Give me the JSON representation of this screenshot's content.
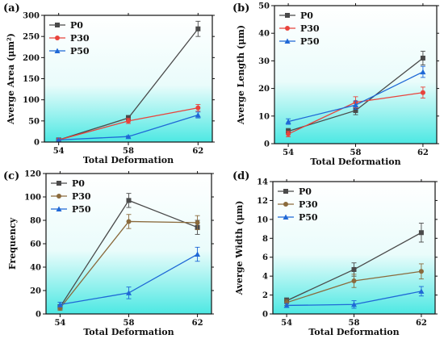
{
  "colors": {
    "P0": "#4a4a4a",
    "P30": "#e8433c",
    "P50": "#1f68d6",
    "P30_dark": "#8a6a3c",
    "plot_bg_top": "#ffffff",
    "plot_bg_bottom": "#4de8e3"
  },
  "chart_data": [
    {
      "type": "line",
      "panel_label": "(a)",
      "xlabel": "Total Deformation",
      "ylabel": "Averge Area (μm²)",
      "x": [
        54,
        58,
        62
      ],
      "ylim": [
        0,
        300
      ],
      "yticks": [
        0,
        50,
        100,
        150,
        200,
        250,
        300
      ],
      "grid": false,
      "legend": "top-left",
      "series": [
        {
          "name": "P0",
          "values": [
            5,
            57,
            268
          ],
          "errors": [
            2,
            6,
            18
          ],
          "marker": "square",
          "color": "#4a4a4a"
        },
        {
          "name": "P30",
          "values": [
            5,
            50,
            81
          ],
          "errors": [
            2,
            6,
            8
          ],
          "marker": "circle",
          "color": "#e8433c"
        },
        {
          "name": "P50",
          "values": [
            5,
            13,
            64
          ],
          "errors": [
            1,
            2,
            7
          ],
          "marker": "triangle",
          "color": "#1f68d6"
        }
      ]
    },
    {
      "type": "line",
      "panel_label": "(b)",
      "xlabel": "Total Deformation",
      "ylabel": "Averge Length (μm)",
      "x": [
        54,
        58,
        62
      ],
      "ylim": [
        0,
        50
      ],
      "yticks": [
        0,
        10,
        20,
        30,
        40,
        50
      ],
      "grid": false,
      "legend": "top-left",
      "series": [
        {
          "name": "P0",
          "values": [
            4.5,
            12,
            31
          ],
          "errors": [
            1,
            1.5,
            2.5
          ],
          "marker": "square",
          "color": "#4a4a4a"
        },
        {
          "name": "P30",
          "values": [
            3.5,
            15,
            18.5
          ],
          "errors": [
            1,
            2,
            2
          ],
          "marker": "circle",
          "color": "#e8433c"
        },
        {
          "name": "P50",
          "values": [
            8,
            14,
            26
          ],
          "errors": [
            1,
            1.5,
            2
          ],
          "marker": "triangle",
          "color": "#1f68d6"
        }
      ]
    },
    {
      "type": "line",
      "panel_label": "(c)",
      "xlabel": "Total Deformation",
      "ylabel": "Frequency",
      "x": [
        54,
        58,
        62
      ],
      "ylim": [
        0,
        120
      ],
      "yticks": [
        0,
        20,
        40,
        60,
        80,
        100,
        120
      ],
      "grid": false,
      "legend": "top-left",
      "series": [
        {
          "name": "P0",
          "values": [
            6,
            97,
            74
          ],
          "errors": [
            2,
            6,
            6
          ],
          "marker": "square",
          "color": "#4a4a4a"
        },
        {
          "name": "P30",
          "values": [
            5,
            79,
            78
          ],
          "errors": [
            2,
            6,
            6
          ],
          "marker": "circle",
          "color": "#8a6a3c"
        },
        {
          "name": "P50",
          "values": [
            8,
            18,
            51
          ],
          "errors": [
            2,
            5,
            6
          ],
          "marker": "triangle",
          "color": "#1f68d6"
        }
      ]
    },
    {
      "type": "line",
      "panel_label": "(d)",
      "xlabel": "Total Deformation",
      "ylabel": "Averge Width (μm)",
      "x": [
        54,
        58,
        62
      ],
      "ylim": [
        0,
        14
      ],
      "yticks": [
        0,
        2,
        4,
        6,
        8,
        10,
        12,
        14
      ],
      "grid": false,
      "legend": "top-left",
      "series": [
        {
          "name": "P0",
          "values": [
            1.4,
            4.7,
            8.6
          ],
          "errors": [
            0.3,
            0.7,
            1.0
          ],
          "marker": "square",
          "color": "#4a4a4a"
        },
        {
          "name": "P30",
          "values": [
            1.2,
            3.5,
            4.5
          ],
          "errors": [
            0.3,
            0.7,
            0.8
          ],
          "marker": "circle",
          "color": "#8a6a3c"
        },
        {
          "name": "P50",
          "values": [
            0.9,
            1.0,
            2.4
          ],
          "errors": [
            0.2,
            0.4,
            0.5
          ],
          "marker": "triangle",
          "color": "#1f68d6"
        }
      ]
    }
  ]
}
